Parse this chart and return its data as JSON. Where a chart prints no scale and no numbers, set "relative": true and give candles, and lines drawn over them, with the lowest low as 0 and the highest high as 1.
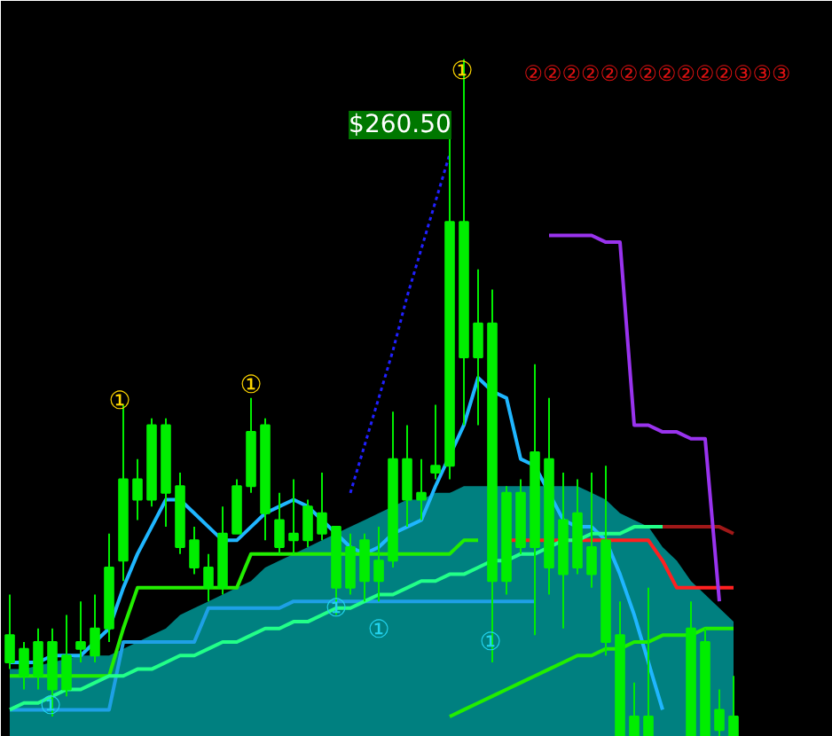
{
  "chart_data": {
    "type": "candlestick",
    "relative": true,
    "grid": false,
    "categories": [
      null,
      null,
      null,
      null,
      null,
      null,
      null,
      null,
      null,
      null,
      null,
      null,
      null,
      null,
      null,
      null,
      null,
      null,
      null,
      null,
      null,
      null,
      null,
      null,
      null,
      null,
      null,
      null,
      null,
      null,
      null,
      null,
      null,
      null,
      null,
      null,
      null,
      null,
      null,
      null,
      null,
      null,
      null,
      null,
      null,
      null,
      null,
      null,
      null,
      null,
      null,
      null
    ],
    "color": "#00ee00",
    "ohlc": [
      [
        0.11,
        0.21,
        0.1,
        0.15
      ],
      [
        0.09,
        0.14,
        0.07,
        0.13
      ],
      [
        0.09,
        0.16,
        0.07,
        0.14
      ],
      [
        0.07,
        0.16,
        0.03,
        0.14
      ],
      [
        0.07,
        0.18,
        0.06,
        0.12
      ],
      [
        0.13,
        0.2,
        0.11,
        0.14
      ],
      [
        0.12,
        0.21,
        0.11,
        0.16
      ],
      [
        0.16,
        0.3,
        0.14,
        0.25
      ],
      [
        0.26,
        0.49,
        0.23,
        0.38
      ],
      [
        0.35,
        0.41,
        0.32,
        0.38
      ],
      [
        0.35,
        0.47,
        0.34,
        0.46
      ],
      [
        0.36,
        0.47,
        0.31,
        0.46
      ],
      [
        0.28,
        0.39,
        0.27,
        0.37
      ],
      [
        0.25,
        0.31,
        0.24,
        0.29
      ],
      [
        0.22,
        0.27,
        0.2,
        0.25
      ],
      [
        0.22,
        0.34,
        0.21,
        0.3
      ],
      [
        0.3,
        0.38,
        0.3,
        0.37
      ],
      [
        0.37,
        0.5,
        0.36,
        0.45
      ],
      [
        0.33,
        0.47,
        0.29,
        0.46
      ],
      [
        0.28,
        0.36,
        0.27,
        0.32
      ],
      [
        0.29,
        0.38,
        0.27,
        0.3
      ],
      [
        0.29,
        0.35,
        0.28,
        0.34
      ],
      [
        0.3,
        0.39,
        0.29,
        0.33
      ],
      [
        0.22,
        0.31,
        0.18,
        0.31
      ],
      [
        0.22,
        0.3,
        0.21,
        0.28
      ],
      [
        0.23,
        0.3,
        0.2,
        0.29
      ],
      [
        0.23,
        0.31,
        0.2,
        0.26
      ],
      [
        0.26,
        0.48,
        0.25,
        0.41
      ],
      [
        0.35,
        0.46,
        0.31,
        0.41
      ],
      [
        0.35,
        0.41,
        0.32,
        0.36
      ],
      [
        0.39,
        0.49,
        0.38,
        0.4
      ],
      [
        0.4,
        0.9,
        0.38,
        0.76
      ],
      [
        0.56,
        1,
        0.46,
        0.76
      ],
      [
        0.56,
        0.69,
        0.46,
        0.61
      ],
      [
        0.23,
        0.66,
        0.11,
        0.61
      ],
      [
        0.23,
        0.37,
        0.21,
        0.36
      ],
      [
        0.28,
        0.38,
        0.27,
        0.36
      ],
      [
        0.28,
        0.55,
        0.15,
        0.42
      ],
      [
        0.25,
        0.5,
        0.21,
        0.41
      ],
      [
        0.24,
        0.39,
        0.16,
        0.32
      ],
      [
        0.25,
        0.38,
        0.24,
        0.33
      ],
      [
        0.24,
        0.39,
        0.22,
        0.28
      ],
      [
        0.14,
        0.4,
        0.12,
        0.29
      ],
      [
        0,
        0.2,
        0,
        0.15
      ],
      [
        0,
        0.08,
        0,
        0.03
      ],
      [
        0,
        0.22,
        0,
        0.03
      ],
      null,
      null,
      [
        0,
        0.2,
        0,
        0.16
      ],
      [
        0,
        0.16,
        0,
        0.14
      ],
      [
        0.01,
        0.07,
        0,
        0.04
      ],
      [
        0,
        0.09,
        0,
        0.03
      ]
    ],
    "series": [
      {
        "type": "area",
        "color": "#008080",
        "values": [
          0.1,
          0.1,
          null,
          null,
          null,
          0.12,
          0.12,
          0.12,
          0.13,
          0.14,
          0.15,
          0.16,
          0.18,
          0.19,
          0.2,
          0.21,
          0.22,
          0.23,
          0.25,
          0.26,
          0.27,
          0.28,
          0.29,
          null,
          0.31,
          0.32,
          0.33,
          null,
          0.35,
          0.35,
          0.36,
          0.36,
          0.37,
          0.37,
          null,
          0.37,
          0.37,
          null,
          null,
          0.37,
          0.37,
          0.36,
          0.35,
          0.33,
          0.32,
          0.31,
          0.28,
          0.26,
          0.23,
          0.21,
          0.19,
          0.17
        ]
      },
      {
        "type": "line",
        "color": "#1fb6ff",
        "values": [
          0.11,
          0.11,
          0.11,
          0.12,
          0.12,
          0.12,
          0.14,
          0.16,
          0.22,
          0.27,
          0.31,
          0.35,
          0.35,
          0.33,
          0.31,
          0.29,
          0.29,
          0.31,
          0.33,
          0.34,
          0.35,
          0.34,
          0.32,
          0.3,
          0.28,
          0.27,
          0.28,
          0.3,
          0.31,
          0.32,
          0.37,
          null,
          0.46,
          0.53,
          0.51,
          0.5,
          0.41,
          0.4,
          0.36,
          0.32,
          0.31,
          0.31,
          0.29,
          0.24,
          0.18,
          0.11,
          0.04,
          null,
          null,
          null,
          null,
          null
        ]
      },
      {
        "type": "line",
        "color": "#22ee00",
        "values": [
          0.09,
          0.09,
          0.09,
          0.09,
          0.09,
          0.09,
          0.09,
          0.09,
          0.16,
          0.22,
          0.22,
          0.22,
          0.22,
          0.22,
          0.22,
          0.22,
          0.22,
          0.27,
          0.27,
          0.27,
          0.27,
          0.27,
          0.27,
          0.27,
          0.27,
          0.27,
          0.27,
          0.27,
          0.27,
          0.27,
          0.27,
          0.27,
          0.29,
          0.29,
          null,
          null,
          null,
          null,
          null,
          null,
          null,
          null,
          null,
          null,
          null,
          null,
          null,
          null,
          null,
          null,
          null,
          null
        ]
      },
      {
        "type": "line",
        "color": "#ff2020",
        "values": [
          null,
          null,
          null,
          null,
          null,
          null,
          null,
          null,
          null,
          null,
          null,
          null,
          null,
          null,
          null,
          null,
          null,
          null,
          null,
          null,
          null,
          null,
          null,
          null,
          null,
          null,
          null,
          null,
          null,
          null,
          null,
          null,
          null,
          null,
          null,
          0.29,
          0.29,
          0.29,
          0.29,
          0.29,
          0.29,
          0.29,
          0.29,
          0.29,
          0.29,
          0.29,
          0.26,
          0.22,
          0.22,
          0.22,
          0.22,
          0.22
        ]
      },
      {
        "type": "line",
        "color": "#1ea0e6",
        "values": [
          0.04,
          0.04,
          0.04,
          0.04,
          0.04,
          0.04,
          0.04,
          0.04,
          0.14,
          0.14,
          0.14,
          0.14,
          0.14,
          0.14,
          0.19,
          0.19,
          0.19,
          0.19,
          0.19,
          0.19,
          0.2,
          0.2,
          0.2,
          0.2,
          0.2,
          0.2,
          0.2,
          0.2,
          0.2,
          0.2,
          0.2,
          0.2,
          0.2,
          0.2,
          0.2,
          0.2,
          0.2,
          0.2,
          null,
          null,
          null,
          null,
          null,
          null,
          null,
          null,
          null,
          null,
          null,
          null,
          null,
          null
        ]
      },
      {
        "type": "line",
        "color": "#22ff88",
        "values": [
          0.04,
          0.05,
          0.05,
          0.06,
          0.07,
          0.07,
          0.08,
          0.09,
          0.09,
          0.1,
          0.1,
          0.11,
          0.12,
          0.12,
          0.13,
          0.14,
          0.14,
          0.15,
          0.16,
          0.16,
          0.17,
          0.17,
          0.18,
          0.19,
          0.19,
          0.2,
          0.21,
          0.21,
          0.22,
          0.23,
          0.23,
          0.24,
          0.24,
          0.25,
          0.26,
          0.26,
          0.27,
          0.27,
          0.28,
          0.29,
          0.29,
          0.3,
          0.3,
          0.3,
          0.31,
          0.31,
          0.31,
          null,
          null,
          null,
          null,
          null
        ]
      },
      {
        "type": "line",
        "color": "#a01818",
        "values": [
          null,
          null,
          null,
          null,
          null,
          null,
          null,
          null,
          null,
          null,
          null,
          null,
          null,
          null,
          null,
          null,
          null,
          null,
          null,
          null,
          null,
          null,
          null,
          null,
          null,
          null,
          null,
          null,
          null,
          null,
          null,
          null,
          null,
          null,
          null,
          null,
          null,
          null,
          null,
          null,
          null,
          null,
          null,
          null,
          null,
          null,
          0.31,
          0.31,
          0.31,
          0.31,
          0.31,
          0.3
        ]
      },
      {
        "type": "line",
        "color": "#9933ee",
        "values": [
          null,
          null,
          null,
          null,
          null,
          null,
          null,
          null,
          null,
          null,
          null,
          null,
          null,
          null,
          null,
          null,
          null,
          null,
          null,
          null,
          null,
          null,
          null,
          null,
          null,
          null,
          null,
          null,
          null,
          null,
          null,
          null,
          null,
          null,
          null,
          null,
          null,
          null,
          0.74,
          0.74,
          0.74,
          0.74,
          0.73,
          0.73,
          0.46,
          0.46,
          0.45,
          0.45,
          0.44,
          0.44,
          0.2,
          null
        ]
      },
      {
        "type": "line",
        "color": "#22ee00",
        "values": [
          null,
          null,
          null,
          null,
          null,
          null,
          null,
          null,
          null,
          null,
          null,
          null,
          null,
          null,
          null,
          null,
          null,
          null,
          null,
          null,
          null,
          null,
          null,
          null,
          null,
          null,
          null,
          null,
          null,
          null,
          null,
          0.03,
          0.04,
          0.05,
          0.06,
          0.07,
          0.08,
          0.09,
          0.1,
          0.11,
          0.12,
          0.12,
          0.13,
          0.13,
          0.14,
          0.14,
          0.15,
          0.15,
          0.15,
          0.16,
          0.16,
          0.16
        ]
      },
      {
        "type": "line",
        "line_style": "dotted",
        "color": "#2020ff",
        "values": [
          null,
          null,
          null,
          null,
          null,
          null,
          null,
          null,
          null,
          null,
          null,
          null,
          null,
          null,
          null,
          null,
          null,
          null,
          null,
          null,
          null,
          null,
          null,
          null,
          0.36,
          0.43,
          0.5,
          0.57,
          0.65,
          0.72,
          0.79,
          0.86,
          null,
          null,
          null,
          null,
          null,
          null,
          null,
          null,
          null,
          null,
          null,
          null,
          null,
          null,
          null,
          null,
          null,
          null,
          null,
          null
        ]
      }
    ],
    "annotations": [
      "①",
      "①",
      "①",
      "①",
      "①",
      "①",
      "①",
      "$260.50",
      "②②②②②②②②②②②③③③"
    ]
  }
}
